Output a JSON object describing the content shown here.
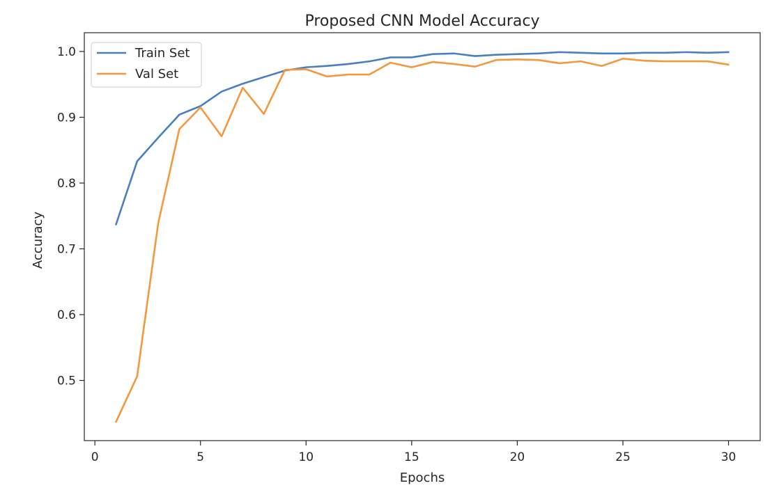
{
  "chart_data": {
    "type": "line",
    "title": "Proposed CNN Model Accuracy",
    "xlabel": "Epochs",
    "ylabel": "Accuracy",
    "xlim": [
      -0.5,
      31.5
    ],
    "ylim": [
      0.4085,
      1.0285
    ],
    "xticks": [
      0,
      5,
      10,
      15,
      20,
      25,
      30
    ],
    "xtick_labels": [
      "0",
      "5",
      "10",
      "15",
      "20",
      "25",
      "30"
    ],
    "yticks": [
      0.5,
      0.6,
      0.7,
      0.8,
      0.9,
      1.0
    ],
    "ytick_labels": [
      "0.5",
      "0.6",
      "0.7",
      "0.8",
      "0.9",
      "1.0"
    ],
    "grid": false,
    "legend_position": "top-left",
    "x": [
      1,
      2,
      3,
      4,
      5,
      6,
      7,
      8,
      9,
      10,
      11,
      12,
      13,
      14,
      15,
      16,
      17,
      18,
      19,
      20,
      21,
      22,
      23,
      24,
      25,
      26,
      27,
      28,
      29,
      30
    ],
    "series": [
      {
        "name": "Train Set",
        "color": "#4a7fbf",
        "values": [
          0.737,
          0.833,
          0.869,
          0.904,
          0.917,
          0.939,
          0.951,
          0.961,
          0.971,
          0.976,
          0.978,
          0.981,
          0.985,
          0.991,
          0.991,
          0.996,
          0.997,
          0.993,
          0.995,
          0.996,
          0.997,
          0.999,
          0.998,
          0.997,
          0.997,
          0.998,
          0.998,
          0.999,
          0.998,
          0.999
        ]
      },
      {
        "name": "Val Set",
        "color": "#f5973f",
        "values": [
          0.437,
          0.506,
          0.739,
          0.882,
          0.915,
          0.871,
          0.945,
          0.905,
          0.972,
          0.973,
          0.962,
          0.965,
          0.965,
          0.983,
          0.976,
          0.984,
          0.981,
          0.977,
          0.987,
          0.988,
          0.987,
          0.982,
          0.985,
          0.978,
          0.989,
          0.986,
          0.985,
          0.985,
          0.985,
          0.98
        ]
      }
    ]
  }
}
